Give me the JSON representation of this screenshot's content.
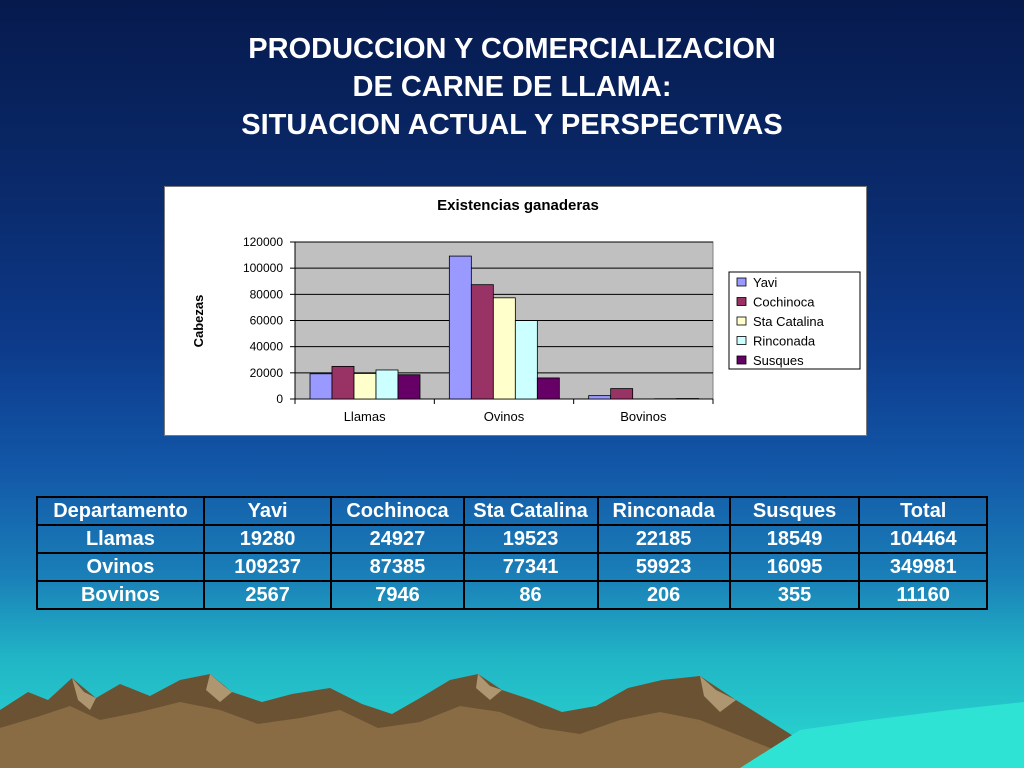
{
  "slide": {
    "title_lines": [
      "PRODUCCION Y COMERCIALIZACION",
      "DE CARNE DE LLAMA:",
      "SITUACION ACTUAL Y PERSPECTIVAS"
    ]
  },
  "chart_data": {
    "type": "bar",
    "title": "Existencias ganaderas",
    "xlabel": "",
    "ylabel": "Cabezas",
    "ylim": [
      0,
      120000
    ],
    "yticks": [
      0,
      20000,
      40000,
      60000,
      80000,
      100000,
      120000
    ],
    "categories": [
      "Llamas",
      "Ovinos",
      "Bovinos"
    ],
    "grid": true,
    "legend_position": "right",
    "series": [
      {
        "name": "Yavi",
        "color": "#9999ff",
        "values": [
          19280,
          109237,
          2567
        ]
      },
      {
        "name": "Cochinoca",
        "color": "#993366",
        "values": [
          24927,
          87385,
          7946
        ]
      },
      {
        "name": "Sta Catalina",
        "color": "#ffffcc",
        "values": [
          19523,
          77341,
          86
        ]
      },
      {
        "name": "Rinconada",
        "color": "#ccffff",
        "values": [
          22185,
          59923,
          206
        ]
      },
      {
        "name": "Susques",
        "color": "#660066",
        "values": [
          18549,
          16095,
          355
        ]
      }
    ]
  },
  "table": {
    "headers": [
      "Departamento",
      "Yavi",
      "Cochinoca",
      "Sta Catalina",
      "Rinconada",
      "Susques",
      "Total"
    ],
    "rows": [
      [
        "Llamas",
        "19280",
        "24927",
        "19523",
        "22185",
        "18549",
        "104464"
      ],
      [
        "Ovinos",
        "109237",
        "87385",
        "77341",
        "59923",
        "16095",
        "349981"
      ],
      [
        "Bovinos",
        "2567",
        "7946",
        "86",
        "206",
        "355",
        "11160"
      ]
    ]
  }
}
